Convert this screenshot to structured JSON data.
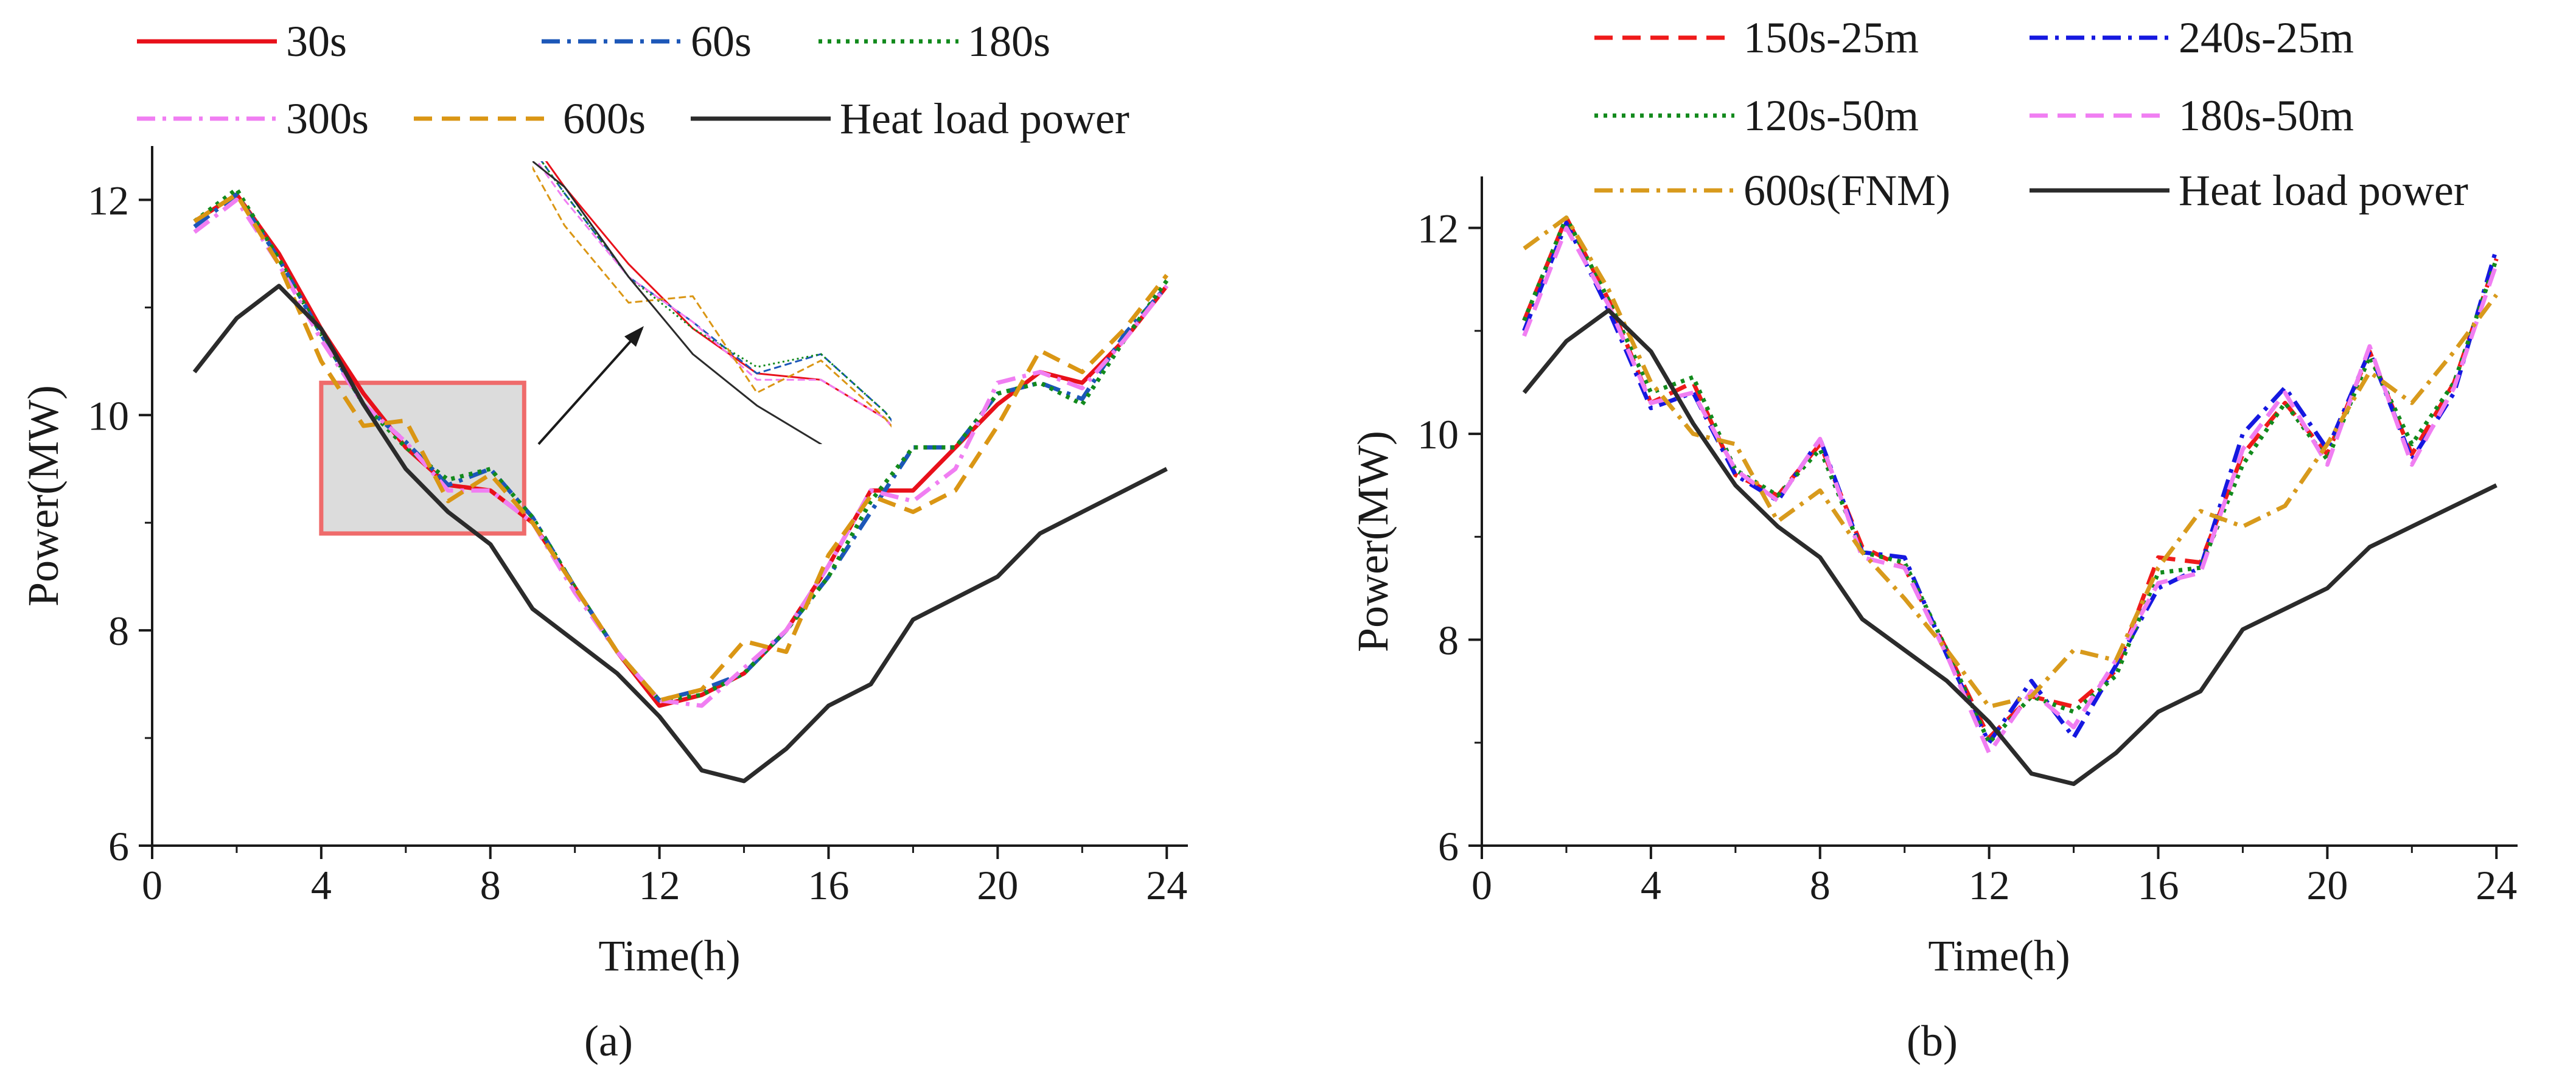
{
  "figure": {
    "panel_a_label": "(a)",
    "panel_b_label": "(b)"
  },
  "chart_data": [
    {
      "type": "line",
      "panel": "a",
      "xlabel": "Time(h)",
      "ylabel": "Power(MW)",
      "xlim": [
        0,
        24.5
      ],
      "ylim": [
        6,
        12.5
      ],
      "xticks": [
        0,
        4,
        8,
        12,
        16,
        20,
        24
      ],
      "yticks": [
        6,
        8,
        10,
        12
      ],
      "x": [
        1,
        2,
        3,
        4,
        5,
        6,
        7,
        8,
        9,
        10,
        11,
        12,
        13,
        14,
        15,
        16,
        17,
        18,
        19,
        20,
        21,
        22,
        23,
        24
      ],
      "series": [
        {
          "name": "30s",
          "color": "#e8101a",
          "dash": "solid",
          "values": [
            11.8,
            12.05,
            11.5,
            10.8,
            10.2,
            9.7,
            9.35,
            9.3,
            9.0,
            8.4,
            7.8,
            7.3,
            7.4,
            7.6,
            8.0,
            8.6,
            9.3,
            9.3,
            9.7,
            10.1,
            10.4,
            10.3,
            10.7,
            11.2
          ]
        },
        {
          "name": "60s",
          "color": "#1c57b8",
          "dash": "dashdot",
          "values": [
            11.75,
            12.05,
            11.45,
            10.75,
            10.1,
            9.75,
            9.35,
            9.5,
            9.05,
            8.4,
            7.8,
            7.35,
            7.45,
            7.6,
            8.0,
            8.5,
            9.1,
            9.7,
            9.7,
            10.2,
            10.3,
            10.15,
            10.75,
            11.2
          ]
        },
        {
          "name": "180s",
          "color": "#128a1c",
          "dash": "dot",
          "values": [
            11.8,
            12.1,
            11.45,
            10.75,
            10.1,
            9.7,
            9.4,
            9.5,
            9.05,
            8.4,
            7.8,
            7.35,
            7.4,
            7.6,
            8.0,
            8.5,
            9.2,
            9.7,
            9.7,
            10.2,
            10.3,
            10.1,
            10.7,
            11.25
          ]
        },
        {
          "name": "300s",
          "color": "#f07ef2",
          "dash": "dashdot",
          "values": [
            11.7,
            12.0,
            11.4,
            10.7,
            10.1,
            9.75,
            9.3,
            9.3,
            9.0,
            8.35,
            7.8,
            7.35,
            7.3,
            7.65,
            8.0,
            8.6,
            9.3,
            9.2,
            9.5,
            10.3,
            10.4,
            10.25,
            10.7,
            11.2
          ]
        },
        {
          "name": "600s",
          "color": "#da9614",
          "dash": "dashed",
          "values": [
            11.8,
            12.05,
            11.4,
            10.5,
            9.9,
            9.95,
            9.2,
            9.45,
            9.0,
            8.4,
            7.8,
            7.35,
            7.45,
            7.9,
            7.8,
            8.7,
            9.25,
            9.1,
            9.3,
            9.9,
            10.6,
            10.4,
            10.8,
            11.3
          ]
        },
        {
          "name": "Heat load power",
          "color": "#2b2b2b",
          "dash": "solid",
          "values": [
            10.4,
            10.9,
            11.2,
            10.8,
            10.1,
            9.5,
            9.1,
            8.8,
            8.2,
            7.9,
            7.6,
            7.2,
            6.7,
            6.6,
            6.9,
            7.3,
            7.5,
            8.1,
            8.3,
            8.5,
            8.9,
            9.1,
            9.3,
            9.5
          ]
        }
      ],
      "annotations": [
        "zoom box covering hours 4 to 8.8 and 8.9 MW to 10.3 MW, magnified inset at the top"
      ]
    },
    {
      "type": "line",
      "panel": "b",
      "xlabel": "Time(h)",
      "ylabel": "Power(MW)",
      "xlim": [
        0,
        24.5
      ],
      "ylim": [
        6,
        12.5
      ],
      "xticks": [
        0,
        4,
        8,
        12,
        16,
        20,
        24
      ],
      "yticks": [
        6,
        8,
        10,
        12
      ],
      "x": [
        1,
        2,
        3,
        4,
        5,
        6,
        7,
        8,
        9,
        10,
        11,
        12,
        13,
        14,
        15,
        16,
        17,
        18,
        19,
        20,
        21,
        22,
        23,
        24
      ],
      "series": [
        {
          "name": "150s-25m",
          "color": "#ef1a1a",
          "dash": "dashed",
          "values": [
            11.1,
            12.1,
            11.3,
            10.3,
            10.5,
            9.6,
            9.4,
            9.9,
            8.9,
            8.7,
            7.9,
            7.05,
            7.45,
            7.35,
            7.7,
            8.8,
            8.75,
            9.8,
            10.3,
            9.8,
            10.8,
            9.8,
            10.5,
            11.7
          ]
        },
        {
          "name": "240s-25m",
          "color": "#1518e0",
          "dash": "dashdot",
          "values": [
            11.0,
            12.05,
            11.2,
            10.25,
            10.4,
            9.6,
            9.35,
            9.95,
            8.85,
            8.8,
            7.85,
            7.0,
            7.6,
            7.05,
            7.75,
            8.5,
            8.7,
            10.0,
            10.45,
            9.85,
            10.8,
            9.75,
            10.4,
            11.8
          ]
        },
        {
          "name": "120s-50m",
          "color": "#128a1c",
          "dash": "dot",
          "values": [
            11.1,
            12.1,
            11.3,
            10.4,
            10.55,
            9.65,
            9.4,
            9.85,
            8.85,
            8.75,
            7.9,
            7.0,
            7.45,
            7.3,
            7.65,
            8.65,
            8.7,
            9.7,
            10.3,
            9.75,
            10.75,
            9.9,
            10.5,
            11.7
          ]
        },
        {
          "name": "180s-50m",
          "color": "#f07ef2",
          "dash": "dashed",
          "values": [
            10.95,
            12.0,
            11.25,
            10.3,
            10.4,
            9.65,
            9.35,
            9.95,
            8.8,
            8.7,
            7.85,
            6.9,
            7.5,
            7.15,
            7.8,
            8.55,
            8.65,
            9.85,
            10.4,
            9.7,
            10.85,
            9.7,
            10.45,
            11.65
          ]
        },
        {
          "name": "600s(FNM)",
          "color": "#d89a1c",
          "dash": "dashdot",
          "values": [
            11.8,
            12.1,
            11.4,
            10.5,
            10.0,
            9.9,
            9.15,
            9.45,
            8.85,
            8.4,
            7.9,
            7.35,
            7.45,
            7.9,
            7.8,
            8.7,
            9.25,
            9.1,
            9.3,
            9.9,
            10.6,
            10.3,
            10.8,
            11.35
          ]
        },
        {
          "name": "Heat load power",
          "color": "#2b2b2b",
          "dash": "solid",
          "values": [
            10.4,
            10.9,
            11.2,
            10.8,
            10.1,
            9.5,
            9.1,
            8.8,
            8.2,
            7.9,
            7.6,
            7.2,
            6.7,
            6.6,
            6.9,
            7.3,
            7.5,
            8.1,
            8.3,
            8.5,
            8.9,
            9.1,
            9.3,
            9.5
          ]
        }
      ]
    }
  ]
}
